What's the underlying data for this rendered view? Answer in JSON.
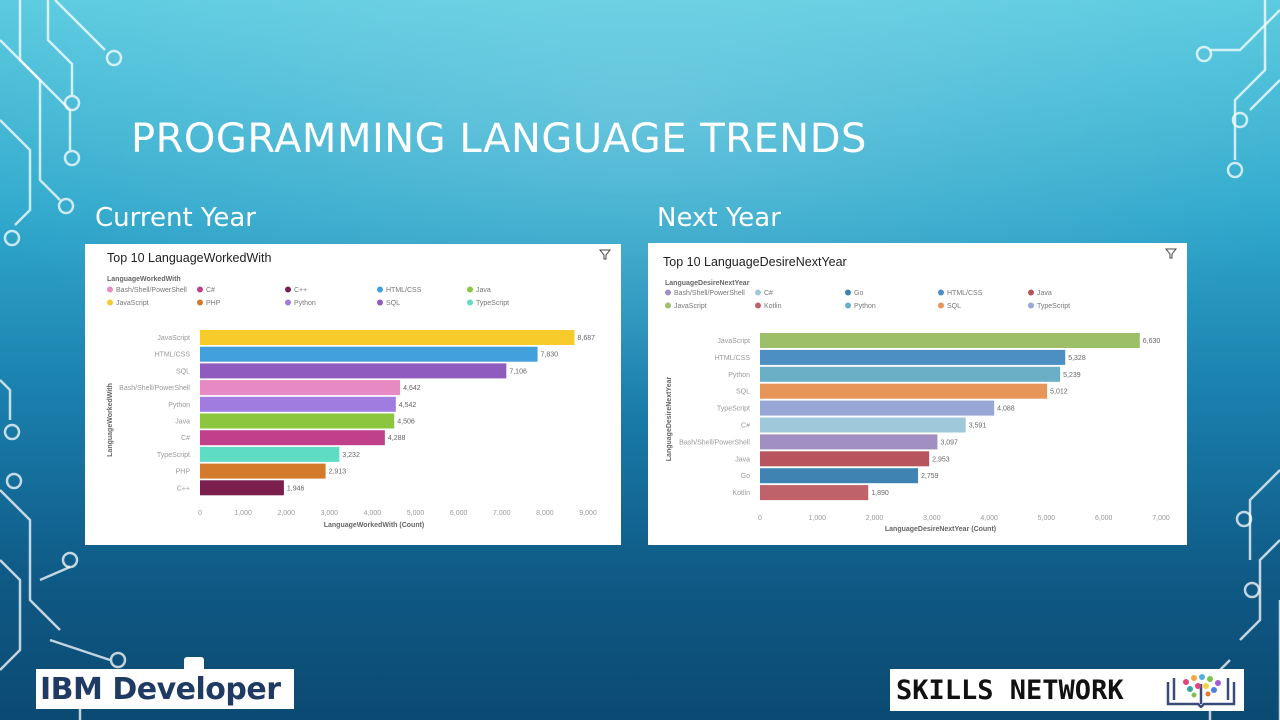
{
  "slide": {
    "title": "PROGRAMMING LANGUAGE TRENDS",
    "current_label": "Current Year",
    "next_label": "Next Year",
    "logo_left": "IBM Developer",
    "logo_right": "SKILLS NETWORK"
  },
  "chart_data": [
    {
      "type": "bar",
      "orientation": "horizontal",
      "title": "Top 10 LanguageWorkedWith",
      "legend_title": "LanguageWorkedWith",
      "legend_placement": "top",
      "legend": [
        {
          "name": "Bash/Shell/PowerShell",
          "color": "#e78ac3"
        },
        {
          "name": "C#",
          "color": "#c1408b"
        },
        {
          "name": "C++",
          "color": "#7b1f4f"
        },
        {
          "name": "HTML/CSS",
          "color": "#42a0dc"
        },
        {
          "name": "Java",
          "color": "#8cc63f"
        },
        {
          "name": "JavaScript",
          "color": "#f7cc2a"
        },
        {
          "name": "PHP",
          "color": "#d47a2c"
        },
        {
          "name": "Python",
          "color": "#a07be0"
        },
        {
          "name": "SQL",
          "color": "#8f5bbf"
        },
        {
          "name": "TypeScript",
          "color": "#5fdcc4"
        }
      ],
      "categories": [
        "JavaScript",
        "HTML/CSS",
        "SQL",
        "Bash/Shell/PowerShell",
        "Python",
        "Java",
        "C#",
        "TypeScript",
        "PHP",
        "C++"
      ],
      "values": [
        8687,
        7830,
        7106,
        4642,
        4542,
        4506,
        4288,
        3232,
        2913,
        1946
      ],
      "value_labels": [
        "8,687",
        "7,830",
        "7,106",
        "4,642",
        "4,542",
        "4,506",
        "4,288",
        "3,232",
        "2,913",
        "1,946"
      ],
      "colors": [
        "#f7cc2a",
        "#42a0dc",
        "#8f5bbf",
        "#e78ac3",
        "#a07be0",
        "#8cc63f",
        "#c1408b",
        "#5fdcc4",
        "#d47a2c",
        "#7b1f4f"
      ],
      "xlabel": "LanguageWorkedWith (Count)",
      "ylabel": "LanguageWorkedWith",
      "xlim": [
        0,
        9000
      ],
      "xticks": [
        0,
        1000,
        2000,
        3000,
        4000,
        5000,
        6000,
        7000,
        8000,
        9000
      ],
      "xtick_labels": [
        "0",
        "1,000",
        "2,000",
        "3,000",
        "4,000",
        "5,000",
        "6,000",
        "7,000",
        "8,000",
        "9,000"
      ],
      "grid": false
    },
    {
      "type": "bar",
      "orientation": "horizontal",
      "title": "Top 10 LanguageDesireNextYear",
      "legend_title": "LanguageDesireNextYear",
      "legend_placement": "top",
      "legend": [
        {
          "name": "Bash/Shell/PowerShell",
          "color": "#a08fc0"
        },
        {
          "name": "C#",
          "color": "#9fc9db"
        },
        {
          "name": "Go",
          "color": "#3f83b3"
        },
        {
          "name": "HTML/CSS",
          "color": "#4b8fc3"
        },
        {
          "name": "Java",
          "color": "#b8545d"
        },
        {
          "name": "JavaScript",
          "color": "#9cbf68"
        },
        {
          "name": "Kotlin",
          "color": "#c0626a"
        },
        {
          "name": "Python",
          "color": "#6aafc6"
        },
        {
          "name": "SQL",
          "color": "#e8955a"
        },
        {
          "name": "TypeScript",
          "color": "#99a7d6"
        }
      ],
      "categories": [
        "JavaScript",
        "HTML/CSS",
        "Python",
        "SQL",
        "TypeScript",
        "C#",
        "Bash/Shell/PowerShell",
        "Java",
        "Go",
        "Kotlin"
      ],
      "values": [
        6630,
        5328,
        5239,
        5012,
        4088,
        3591,
        3097,
        2953,
        2759,
        1890
      ],
      "value_labels": [
        "6,630",
        "5,328",
        "5,239",
        "5,012",
        "4,088",
        "3,591",
        "3,097",
        "2,953",
        "2,759",
        "1,890"
      ],
      "colors": [
        "#9cbf68",
        "#4b8fc3",
        "#6aafc6",
        "#e8955a",
        "#99a7d6",
        "#9fc9db",
        "#a08fc0",
        "#b8545d",
        "#3f83b3",
        "#c0626a"
      ],
      "xlabel": "LanguageDesireNextYear (Count)",
      "ylabel": "LanguageDesireNextYear",
      "xlim": [
        0,
        7000
      ],
      "xticks": [
        0,
        1000,
        2000,
        3000,
        4000,
        5000,
        6000,
        7000
      ],
      "xtick_labels": [
        "0",
        "1,000",
        "2,000",
        "3,000",
        "4,000",
        "5,000",
        "6,000",
        "7,000"
      ],
      "grid": false
    }
  ]
}
